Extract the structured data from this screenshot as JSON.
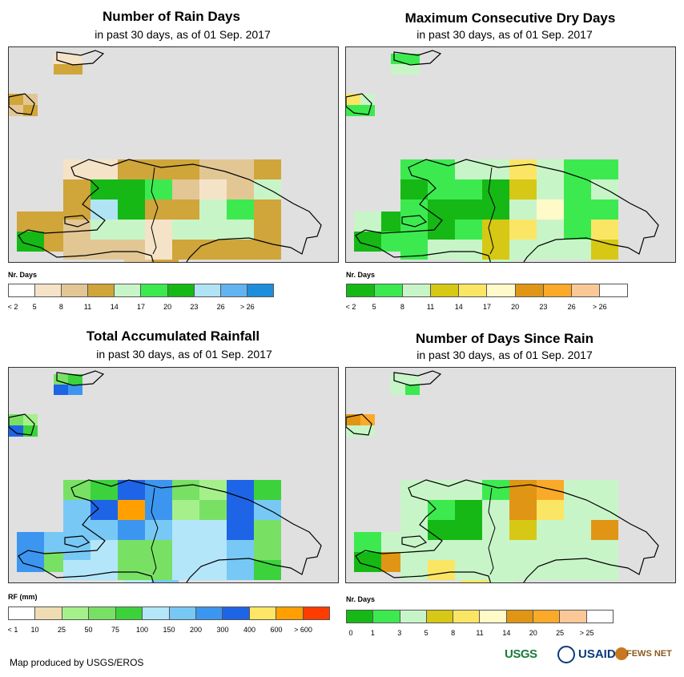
{
  "panels": [
    {
      "title": "Number of Rain Days",
      "subtitle": "in past 30 days, as of 01 Sep. 2017",
      "legend_title": "Nr. Days",
      "legend_labels": [
        "< 2",
        "5",
        "8",
        "11",
        "14",
        "17",
        "20",
        "23",
        "26",
        "> 26"
      ],
      "legend_colors": [
        "#ffffff",
        "#f5e3c8",
        "#e2c795",
        "#d0a53a",
        "#c8f5c8",
        "#3cea50",
        "#16b816",
        "#b0e4f4",
        "#62b4f0",
        "#1e8edc"
      ],
      "cells": [
        {
          "c": 0,
          "r": 0,
          "k": 1
        },
        {
          "c": 1,
          "r": 0,
          "k": 1
        },
        {
          "c": 2,
          "r": 0,
          "k": 3
        },
        {
          "c": 3,
          "r": 0,
          "k": 3
        },
        {
          "c": 4,
          "r": 0,
          "k": 3
        },
        {
          "c": 5,
          "r": 0,
          "k": 2
        },
        {
          "c": 6,
          "r": 0,
          "k": 2
        },
        {
          "c": 7,
          "r": 0,
          "k": 3
        },
        {
          "c": 0,
          "r": 1,
          "k": 3
        },
        {
          "c": 1,
          "r": 1,
          "k": 6
        },
        {
          "c": 2,
          "r": 1,
          "k": 6
        },
        {
          "c": 3,
          "r": 1,
          "k": 5
        },
        {
          "c": 4,
          "r": 1,
          "k": 2
        },
        {
          "c": 5,
          "r": 1,
          "k": 1
        },
        {
          "c": 6,
          "r": 1,
          "k": 2
        },
        {
          "c": 7,
          "r": 1,
          "k": 4
        },
        {
          "c": 0,
          "r": 2,
          "k": 3
        },
        {
          "c": 1,
          "r": 2,
          "k": 7
        },
        {
          "c": 2,
          "r": 2,
          "k": 6
        },
        {
          "c": 3,
          "r": 2,
          "k": 3
        },
        {
          "c": 4,
          "r": 2,
          "k": 3
        },
        {
          "c": 5,
          "r": 2,
          "k": 4
        },
        {
          "c": 6,
          "r": 2,
          "k": 5
        },
        {
          "c": 7,
          "r": 2,
          "k": 3
        },
        {
          "c": 0,
          "r": 3,
          "k": 2
        },
        {
          "c": 1,
          "r": 3,
          "k": 4
        },
        {
          "c": 2,
          "r": 3,
          "k": 4
        },
        {
          "c": 3,
          "r": 3,
          "k": 1
        },
        {
          "c": 4,
          "r": 3,
          "k": 4
        },
        {
          "c": 5,
          "r": 3,
          "k": 4
        },
        {
          "c": 6,
          "r": 3,
          "k": 4
        },
        {
          "c": 7,
          "r": 3,
          "k": 3
        },
        {
          "c": 0,
          "r": 4,
          "k": 2
        },
        {
          "c": 1,
          "r": 4,
          "k": 2
        },
        {
          "c": 2,
          "r": 4,
          "k": 2
        },
        {
          "c": 3,
          "r": 4,
          "k": 1
        },
        {
          "c": 4,
          "r": 4,
          "k": 3
        },
        {
          "c": 5,
          "r": 4,
          "k": 3
        },
        {
          "c": 6,
          "r": 4,
          "k": 3
        },
        {
          "c": 7,
          "r": 4,
          "k": 3
        }
      ]
    },
    {
      "title": "Maximum Consecutive Dry Days",
      "subtitle": "in past 30 days, as of 01 Sep. 2017",
      "legend_title": "Nr. Days",
      "legend_labels": [
        "< 2",
        "5",
        "8",
        "11",
        "14",
        "17",
        "20",
        "23",
        "26",
        "> 26"
      ],
      "legend_colors": [
        "#16b816",
        "#3cea50",
        "#c8f5c8",
        "#d6c814",
        "#fae664",
        "#fffac8",
        "#e09614",
        "#faaa28",
        "#fac896",
        "#ffffff"
      ],
      "cells": [
        {
          "c": 0,
          "r": 0,
          "k": 1
        },
        {
          "c": 1,
          "r": 0,
          "k": 1
        },
        {
          "c": 2,
          "r": 0,
          "k": 2
        },
        {
          "c": 3,
          "r": 0,
          "k": 2
        },
        {
          "c": 4,
          "r": 0,
          "k": 4
        },
        {
          "c": 5,
          "r": 0,
          "k": 2
        },
        {
          "c": 6,
          "r": 0,
          "k": 1
        },
        {
          "c": 7,
          "r": 0,
          "k": 1
        },
        {
          "c": 0,
          "r": 1,
          "k": 0
        },
        {
          "c": 1,
          "r": 1,
          "k": 1
        },
        {
          "c": 2,
          "r": 1,
          "k": 1
        },
        {
          "c": 3,
          "r": 1,
          "k": 0
        },
        {
          "c": 4,
          "r": 1,
          "k": 3
        },
        {
          "c": 5,
          "r": 1,
          "k": 2
        },
        {
          "c": 6,
          "r": 1,
          "k": 1
        },
        {
          "c": 7,
          "r": 1,
          "k": 2
        },
        {
          "c": 0,
          "r": 2,
          "k": 1
        },
        {
          "c": 1,
          "r": 2,
          "k": 0
        },
        {
          "c": 2,
          "r": 2,
          "k": 0
        },
        {
          "c": 3,
          "r": 2,
          "k": 0
        },
        {
          "c": 4,
          "r": 2,
          "k": 2
        },
        {
          "c": 5,
          "r": 2,
          "k": 5
        },
        {
          "c": 6,
          "r": 2,
          "k": 1
        },
        {
          "c": 7,
          "r": 2,
          "k": 1
        },
        {
          "c": 0,
          "r": 3,
          "k": 1
        },
        {
          "c": 1,
          "r": 3,
          "k": 0
        },
        {
          "c": 2,
          "r": 3,
          "k": 1
        },
        {
          "c": 3,
          "r": 3,
          "k": 3
        },
        {
          "c": 4,
          "r": 3,
          "k": 4
        },
        {
          "c": 5,
          "r": 3,
          "k": 2
        },
        {
          "c": 6,
          "r": 3,
          "k": 1
        },
        {
          "c": 7,
          "r": 3,
          "k": 4
        },
        {
          "c": 0,
          "r": 4,
          "k": 1
        },
        {
          "c": 1,
          "r": 4,
          "k": 2
        },
        {
          "c": 2,
          "r": 4,
          "k": 2
        },
        {
          "c": 3,
          "r": 4,
          "k": 3
        },
        {
          "c": 4,
          "r": 4,
          "k": 2
        },
        {
          "c": 5,
          "r": 4,
          "k": 2
        },
        {
          "c": 6,
          "r": 4,
          "k": 2
        },
        {
          "c": 7,
          "r": 4,
          "k": 3
        }
      ]
    },
    {
      "title": "Total Accumulated Rainfall",
      "subtitle": "in past 30 days, as of 01 Sep. 2017",
      "legend_title": "RF (mm)",
      "legend_labels": [
        "< 1",
        "10",
        "25",
        "50",
        "75",
        "100",
        "150",
        "200",
        "300",
        "400",
        "600",
        "> 600"
      ],
      "legend_colors": [
        "#ffffff",
        "#f0dcb4",
        "#a6f08c",
        "#78e164",
        "#3cd23c",
        "#b4e6fa",
        "#78c8f5",
        "#3c96f0",
        "#1e64e6",
        "#ffe664",
        "#ffa000",
        "#ff3c00"
      ],
      "cells": [
        {
          "c": 0,
          "r": 0,
          "k": 3
        },
        {
          "c": 1,
          "r": 0,
          "k": 4
        },
        {
          "c": 2,
          "r": 0,
          "k": 8
        },
        {
          "c": 3,
          "r": 0,
          "k": 7
        },
        {
          "c": 4,
          "r": 0,
          "k": 3
        },
        {
          "c": 5,
          "r": 0,
          "k": 2
        },
        {
          "c": 6,
          "r": 0,
          "k": 8
        },
        {
          "c": 7,
          "r": 0,
          "k": 4
        },
        {
          "c": 0,
          "r": 1,
          "k": 6
        },
        {
          "c": 1,
          "r": 1,
          "k": 8
        },
        {
          "c": 2,
          "r": 1,
          "k": 10
        },
        {
          "c": 3,
          "r": 1,
          "k": 7
        },
        {
          "c": 4,
          "r": 1,
          "k": 2
        },
        {
          "c": 5,
          "r": 1,
          "k": 3
        },
        {
          "c": 6,
          "r": 1,
          "k": 8
        },
        {
          "c": 7,
          "r": 1,
          "k": 6
        },
        {
          "c": 0,
          "r": 2,
          "k": 6
        },
        {
          "c": 1,
          "r": 2,
          "k": 6
        },
        {
          "c": 2,
          "r": 2,
          "k": 7
        },
        {
          "c": 3,
          "r": 2,
          "k": 6
        },
        {
          "c": 4,
          "r": 2,
          "k": 5
        },
        {
          "c": 5,
          "r": 2,
          "k": 5
        },
        {
          "c": 6,
          "r": 2,
          "k": 8
        },
        {
          "c": 7,
          "r": 2,
          "k": 3
        },
        {
          "c": 0,
          "r": 3,
          "k": 6
        },
        {
          "c": 1,
          "r": 3,
          "k": 5
        },
        {
          "c": 2,
          "r": 3,
          "k": 3
        },
        {
          "c": 3,
          "r": 3,
          "k": 3
        },
        {
          "c": 4,
          "r": 3,
          "k": 5
        },
        {
          "c": 5,
          "r": 3,
          "k": 5
        },
        {
          "c": 6,
          "r": 3,
          "k": 6
        },
        {
          "c": 7,
          "r": 3,
          "k": 3
        },
        {
          "c": 0,
          "r": 4,
          "k": 5
        },
        {
          "c": 1,
          "r": 4,
          "k": 5
        },
        {
          "c": 2,
          "r": 4,
          "k": 3
        },
        {
          "c": 3,
          "r": 4,
          "k": 3
        },
        {
          "c": 4,
          "r": 4,
          "k": 5
        },
        {
          "c": 5,
          "r": 4,
          "k": 5
        },
        {
          "c": 6,
          "r": 4,
          "k": 6
        },
        {
          "c": 7,
          "r": 4,
          "k": 4
        }
      ]
    },
    {
      "title": "Number of Days Since Rain",
      "subtitle": "in past 30 days, as of 01 Sep. 2017",
      "legend_title": "Nr. Days",
      "legend_labels": [
        "0",
        "1",
        "3",
        "5",
        "8",
        "11",
        "14",
        "20",
        "25",
        "> 25"
      ],
      "legend_colors": [
        "#16b816",
        "#3cea50",
        "#c8f5c8",
        "#d6c814",
        "#fae664",
        "#fffac8",
        "#e09614",
        "#faaa28",
        "#fac896",
        "#ffffff"
      ],
      "cells": [
        {
          "c": 0,
          "r": 0,
          "k": 2
        },
        {
          "c": 1,
          "r": 0,
          "k": 2
        },
        {
          "c": 2,
          "r": 0,
          "k": 2
        },
        {
          "c": 3,
          "r": 0,
          "k": 1
        },
        {
          "c": 4,
          "r": 0,
          "k": 6
        },
        {
          "c": 5,
          "r": 0,
          "k": 7
        },
        {
          "c": 6,
          "r": 0,
          "k": 2
        },
        {
          "c": 7,
          "r": 0,
          "k": 2
        },
        {
          "c": 0,
          "r": 1,
          "k": 2
        },
        {
          "c": 1,
          "r": 1,
          "k": 1
        },
        {
          "c": 2,
          "r": 1,
          "k": 0
        },
        {
          "c": 3,
          "r": 1,
          "k": 2
        },
        {
          "c": 4,
          "r": 1,
          "k": 6
        },
        {
          "c": 5,
          "r": 1,
          "k": 4
        },
        {
          "c": 6,
          "r": 1,
          "k": 2
        },
        {
          "c": 7,
          "r": 1,
          "k": 2
        },
        {
          "c": 0,
          "r": 2,
          "k": 2
        },
        {
          "c": 1,
          "r": 2,
          "k": 0
        },
        {
          "c": 2,
          "r": 2,
          "k": 0
        },
        {
          "c": 3,
          "r": 2,
          "k": 2
        },
        {
          "c": 4,
          "r": 2,
          "k": 3
        },
        {
          "c": 5,
          "r": 2,
          "k": 2
        },
        {
          "c": 6,
          "r": 2,
          "k": 2
        },
        {
          "c": 7,
          "r": 2,
          "k": 6
        },
        {
          "c": 0,
          "r": 3,
          "k": 2
        },
        {
          "c": 1,
          "r": 3,
          "k": 2
        },
        {
          "c": 2,
          "r": 3,
          "k": 2
        },
        {
          "c": 3,
          "r": 3,
          "k": 2
        },
        {
          "c": 4,
          "r": 3,
          "k": 2
        },
        {
          "c": 5,
          "r": 3,
          "k": 2
        },
        {
          "c": 6,
          "r": 3,
          "k": 2
        },
        {
          "c": 7,
          "r": 3,
          "k": 2
        },
        {
          "c": 0,
          "r": 4,
          "k": 2
        },
        {
          "c": 1,
          "r": 4,
          "k": 4
        },
        {
          "c": 2,
          "r": 4,
          "k": 2
        },
        {
          "c": 3,
          "r": 4,
          "k": 2
        },
        {
          "c": 4,
          "r": 4,
          "k": 2
        },
        {
          "c": 5,
          "r": 4,
          "k": 2
        },
        {
          "c": 6,
          "r": 4,
          "k": 2
        },
        {
          "c": 7,
          "r": 4,
          "k": 2
        }
      ]
    }
  ],
  "footer": {
    "credit": "Map produced by USGS/EROS",
    "logo_usgs": "USGS",
    "logo_usaid": "USAID",
    "logo_fews": "FEWS NET"
  }
}
